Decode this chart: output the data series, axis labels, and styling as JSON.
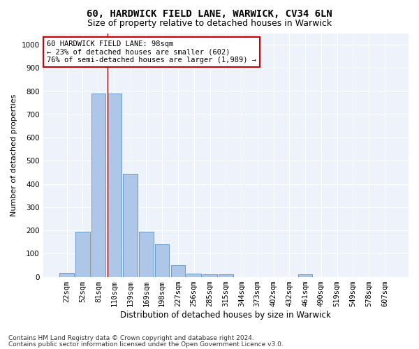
{
  "title1": "60, HARDWICK FIELD LANE, WARWICK, CV34 6LN",
  "title2": "Size of property relative to detached houses in Warwick",
  "xlabel": "Distribution of detached houses by size in Warwick",
  "ylabel": "Number of detached properties",
  "bar_labels": [
    "22sqm",
    "52sqm",
    "81sqm",
    "110sqm",
    "139sqm",
    "169sqm",
    "198sqm",
    "227sqm",
    "256sqm",
    "285sqm",
    "315sqm",
    "344sqm",
    "373sqm",
    "402sqm",
    "432sqm",
    "461sqm",
    "490sqm",
    "519sqm",
    "549sqm",
    "578sqm",
    "607sqm"
  ],
  "bar_values": [
    18,
    195,
    790,
    790,
    445,
    195,
    140,
    50,
    15,
    12,
    12,
    0,
    0,
    0,
    0,
    10,
    0,
    0,
    0,
    0,
    0
  ],
  "bar_color": "#aec6e8",
  "bar_edge_color": "#5a8fc0",
  "vline_x": 2.55,
  "vline_color": "#8b0000",
  "annotation_text": "60 HARDWICK FIELD LANE: 98sqm\n← 23% of detached houses are smaller (602)\n76% of semi-detached houses are larger (1,989) →",
  "annotation_box_color": "#ffffff",
  "annotation_border_color": "#cc0000",
  "ylim": [
    0,
    1050
  ],
  "yticks": [
    0,
    100,
    200,
    300,
    400,
    500,
    600,
    700,
    800,
    900,
    1000
  ],
  "footer1": "Contains HM Land Registry data © Crown copyright and database right 2024.",
  "footer2": "Contains public sector information licensed under the Open Government Licence v3.0.",
  "bg_color": "#eef2fb",
  "grid_color": "#ffffff",
  "title1_fontsize": 10,
  "title2_fontsize": 9,
  "xlabel_fontsize": 8.5,
  "ylabel_fontsize": 8,
  "tick_fontsize": 7.5,
  "annotation_fontsize": 7.5,
  "footer_fontsize": 6.5
}
